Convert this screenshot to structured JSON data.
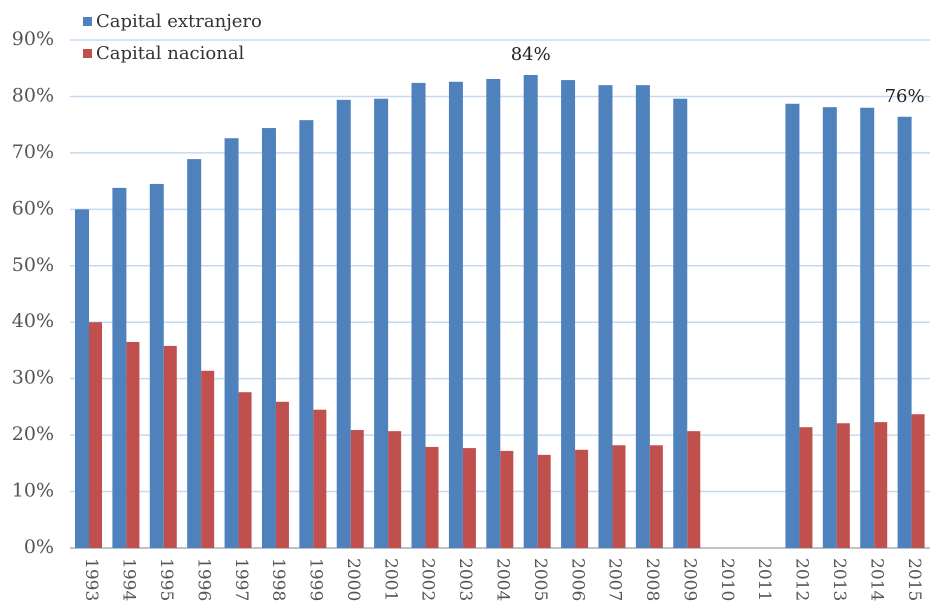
{
  "chart_data": {
    "type": "bar",
    "categories": [
      "1993",
      "1994",
      "1995",
      "1996",
      "1997",
      "1998",
      "1999",
      "2000",
      "2001",
      "2002",
      "2003",
      "2004",
      "2005",
      "2006",
      "2007",
      "2008",
      "2009",
      "2010",
      "2011",
      "2012",
      "2013",
      "2014",
      "2015"
    ],
    "series": [
      {
        "name": "Capital extranjero",
        "color": "#4f81bd",
        "values": [
          60.0,
          63.8,
          64.5,
          68.9,
          72.6,
          74.4,
          75.8,
          79.4,
          79.6,
          82.4,
          82.6,
          83.1,
          83.8,
          82.9,
          82.0,
          82.0,
          79.6,
          null,
          null,
          78.7,
          78.1,
          78.0,
          76.4
        ],
        "value_labels": [
          null,
          null,
          null,
          null,
          null,
          null,
          null,
          null,
          null,
          null,
          null,
          null,
          "84%",
          null,
          null,
          null,
          null,
          null,
          null,
          null,
          null,
          null,
          "76%"
        ]
      },
      {
        "name": "Capital nacional",
        "color": "#c0504d",
        "values": [
          40.0,
          36.5,
          35.8,
          31.4,
          27.6,
          25.9,
          24.5,
          20.9,
          20.7,
          17.9,
          17.7,
          17.2,
          16.5,
          17.4,
          18.2,
          18.2,
          20.7,
          null,
          null,
          21.4,
          22.1,
          22.3,
          23.7
        ]
      }
    ],
    "ylim": [
      0,
      90
    ],
    "yticks": [
      {
        "value": 0,
        "label": "0%"
      },
      {
        "value": 10,
        "label": "10%"
      },
      {
        "value": 20,
        "label": "20%"
      },
      {
        "value": 30,
        "label": "30%"
      },
      {
        "value": 40,
        "label": "40%"
      },
      {
        "value": 50,
        "label": "50%"
      },
      {
        "value": 60,
        "label": "60%"
      },
      {
        "value": 70,
        "label": "70%"
      },
      {
        "value": 80,
        "label": "80%"
      },
      {
        "value": 90,
        "label": "90%"
      }
    ],
    "grid": true,
    "legend": "top-left"
  }
}
